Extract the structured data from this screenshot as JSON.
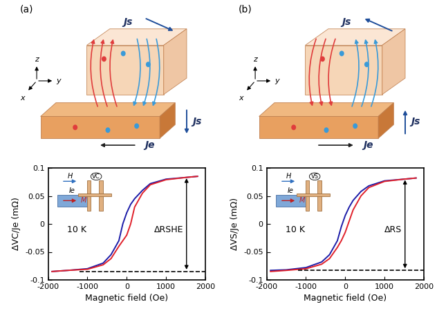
{
  "diagrams": [
    {
      "label": "(a)",
      "spin_current_labels": [
        "Js",
        "Js"
      ],
      "charge_current_label": "Je",
      "axis_labels": [
        "x",
        "y",
        "z"
      ]
    },
    {
      "label": "(b)",
      "spin_current_labels": [
        "Js",
        "Js"
      ],
      "charge_current_label": "Je",
      "axis_labels": [
        "x",
        "y",
        "z"
      ]
    }
  ],
  "chart_data": [
    {
      "type": "line",
      "x_label": "Magnetic field (Oe)",
      "y_label": "ΔVC/Je (mΩ)",
      "annotations": [
        "10 K",
        "ΔRSHE"
      ],
      "inset_labels": [
        "H",
        "Ie",
        "M",
        "VC"
      ],
      "x": [
        -1900,
        -1500,
        -1000,
        -600,
        -400,
        -200,
        -100,
        0,
        100,
        200,
        400,
        600,
        1000,
        1500,
        1800
      ],
      "series": [
        {
          "color": "#1c1ca8",
          "values": [
            -0.085,
            -0.083,
            -0.08,
            -0.07,
            -0.055,
            -0.03,
            0.0,
            0.02,
            0.035,
            0.045,
            0.06,
            0.072,
            0.08,
            0.083,
            0.085
          ]
        },
        {
          "color": "#e0202a",
          "values": [
            -0.085,
            -0.083,
            -0.081,
            -0.073,
            -0.062,
            -0.04,
            -0.03,
            -0.02,
            0.0,
            0.03,
            0.055,
            0.07,
            0.079,
            0.083,
            0.085
          ]
        }
      ],
      "xlim": [
        -2000,
        2000
      ],
      "xticks": [
        -2000,
        -1000,
        0,
        1000,
        2000
      ],
      "ylim": [
        -0.1,
        0.1
      ],
      "yticks": [
        -0.1,
        -0.05,
        0,
        0.05,
        0.1
      ]
    },
    {
      "type": "line",
      "x_label": "Magnetic field (Oe)",
      "y_label": "ΔVS/Je (mΩ)",
      "annotations": [
        "10 K",
        "ΔRS"
      ],
      "inset_labels": [
        "H",
        "Ie",
        "M",
        "VS"
      ],
      "x": [
        -1900,
        -1500,
        -1000,
        -600,
        -400,
        -200,
        -100,
        0,
        100,
        200,
        400,
        600,
        1000,
        1500,
        1800
      ],
      "series": [
        {
          "color": "#1c1ca8",
          "values": [
            -0.083,
            -0.082,
            -0.078,
            -0.068,
            -0.055,
            -0.03,
            -0.005,
            0.015,
            0.03,
            0.042,
            0.058,
            0.068,
            0.077,
            0.08,
            0.082
          ]
        },
        {
          "color": "#e0202a",
          "values": [
            -0.085,
            -0.083,
            -0.08,
            -0.072,
            -0.062,
            -0.042,
            -0.03,
            -0.015,
            0.005,
            0.025,
            0.05,
            0.065,
            0.076,
            0.08,
            0.082
          ]
        }
      ],
      "xlim": [
        -2000,
        2000
      ],
      "xticks": [
        -2000,
        -1000,
        0,
        1000,
        2000
      ],
      "ylim": [
        -0.1,
        0.1
      ],
      "yticks": [
        -0.1,
        -0.05,
        0,
        0.05,
        0.1
      ]
    }
  ]
}
